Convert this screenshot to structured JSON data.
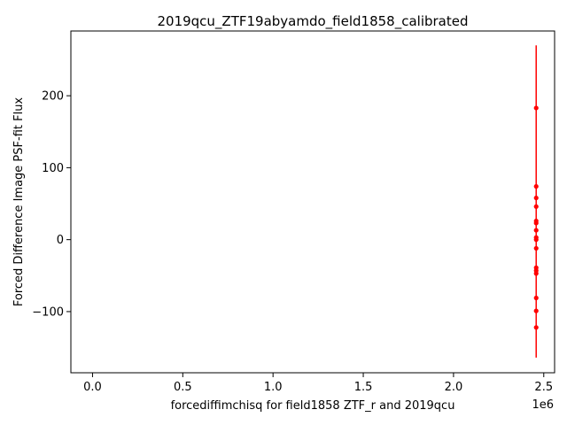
{
  "chart_data": {
    "type": "scatter",
    "title": "2019qcu_ZTF19abyamdo_field1858_calibrated",
    "xlabel": "forcediffimchisq for field1858 ZTF_r and 2019qcu",
    "ylabel": "Forced Difference Image PSF-fit Flux",
    "x_offset_label": "1e6",
    "xlim": [
      -0.12,
      2.56
    ],
    "ylim": [
      -185,
      290
    ],
    "x_ticks": [
      0.0,
      0.5,
      1.0,
      1.5,
      2.0,
      2.5
    ],
    "x_tick_labels": [
      "0.0",
      "0.5",
      "1.0",
      "1.5",
      "2.0",
      "2.5"
    ],
    "y_ticks": [
      -100,
      0,
      100,
      200
    ],
    "y_tick_labels": [
      "−100",
      "0",
      "100",
      "200"
    ],
    "grid": false,
    "series": [
      {
        "color": "#ff0000",
        "marker": "point",
        "points": [
          {
            "x": 2.458,
            "y": 183
          },
          {
            "x": 2.458,
            "y": 74
          },
          {
            "x": 2.458,
            "y": 58
          },
          {
            "x": 2.458,
            "y": 46
          },
          {
            "x": 2.458,
            "y": 26
          },
          {
            "x": 2.458,
            "y": 23
          },
          {
            "x": 2.458,
            "y": 13
          },
          {
            "x": 2.458,
            "y": 3
          },
          {
            "x": 2.458,
            "y": 0
          },
          {
            "x": 2.458,
            "y": -12
          },
          {
            "x": 2.458,
            "y": -39
          },
          {
            "x": 2.458,
            "y": -43
          },
          {
            "x": 2.458,
            "y": -47
          },
          {
            "x": 2.458,
            "y": -81
          },
          {
            "x": 2.458,
            "y": -99
          },
          {
            "x": 2.458,
            "y": -122
          }
        ],
        "error_bar_range": [
          -164,
          270
        ]
      }
    ]
  }
}
